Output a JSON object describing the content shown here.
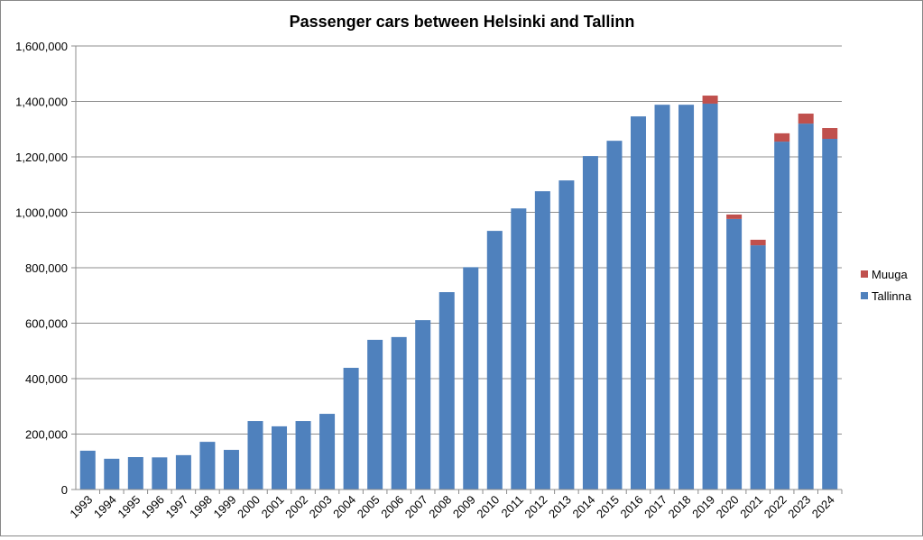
{
  "chart_data": {
    "type": "bar",
    "stacked": true,
    "title": "Passenger cars between Helsinki and Tallinn",
    "xlabel": "",
    "ylabel": "",
    "ylim": [
      0,
      1600000
    ],
    "yticks": [
      0,
      200000,
      400000,
      600000,
      800000,
      1000000,
      1200000,
      1400000,
      1600000
    ],
    "ytick_labels": [
      "0",
      "200,000",
      "400,000",
      "600,000",
      "800,000",
      "1,000,000",
      "1,200,000",
      "1,400,000",
      "1,600,000"
    ],
    "grid": true,
    "legend_position": "right",
    "categories": [
      "1993",
      "1994",
      "1995",
      "1996",
      "1997",
      "1998",
      "1999",
      "2000",
      "2001",
      "2002",
      "2003",
      "2004",
      "2005",
      "2006",
      "2007",
      "2008",
      "2009",
      "2010",
      "2011",
      "2012",
      "2013",
      "2014",
      "2015",
      "2016",
      "2017",
      "2018",
      "2019",
      "2020",
      "2021",
      "2022",
      "2023",
      "2024"
    ],
    "series": [
      {
        "name": "Tallinna",
        "color": "#4F81BD",
        "values": [
          140000,
          111000,
          117000,
          116000,
          124000,
          172000,
          143000,
          247000,
          228000,
          247000,
          273000,
          439000,
          540000,
          550000,
          611000,
          712000,
          802000,
          933000,
          1014000,
          1076000,
          1115000,
          1203000,
          1258000,
          1346000,
          1388000,
          1388000,
          1392000,
          976000,
          881000,
          1255000,
          1320000,
          1265000
        ]
      },
      {
        "name": "Muuga",
        "color": "#C0504D",
        "values": [
          0,
          0,
          0,
          0,
          0,
          0,
          0,
          0,
          0,
          0,
          0,
          0,
          0,
          0,
          0,
          0,
          0,
          0,
          0,
          0,
          0,
          0,
          0,
          0,
          0,
          0,
          29000,
          16000,
          20000,
          30000,
          36000,
          39000
        ]
      }
    ]
  }
}
